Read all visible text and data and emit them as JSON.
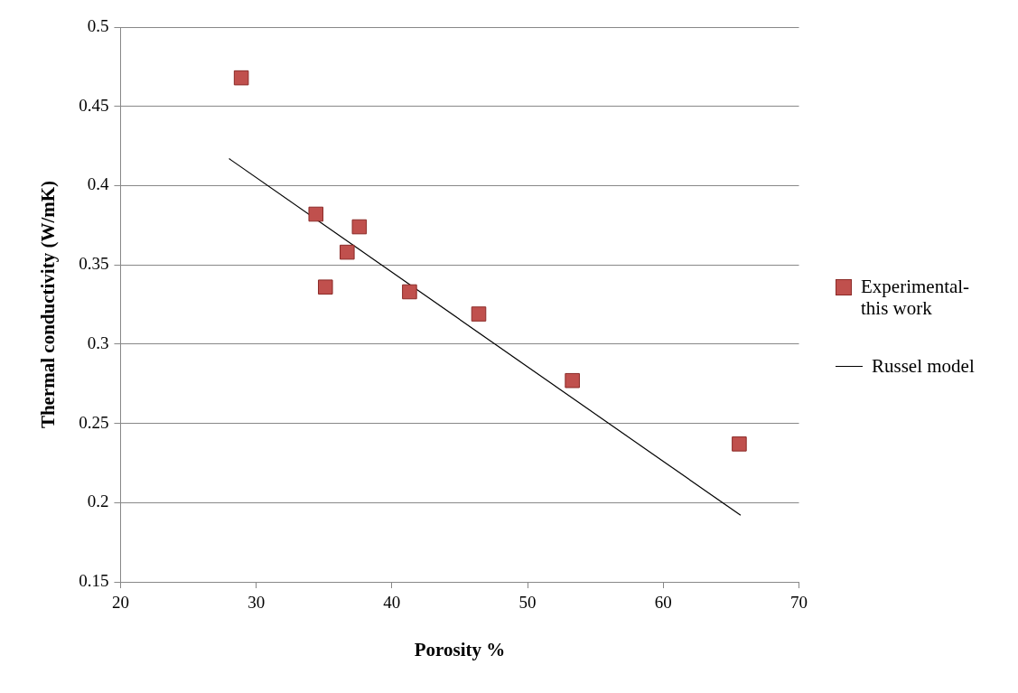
{
  "chart_data": {
    "type": "scatter",
    "xlabel": "Porosity %",
    "ylabel": "Thermal conductivity (W/mK)",
    "xlim": [
      20,
      70
    ],
    "xticks": [
      20,
      30,
      40,
      50,
      60,
      70
    ],
    "ylim": [
      0.15,
      0.5
    ],
    "yticks": [
      0.15,
      0.2,
      0.25,
      0.3,
      0.35,
      0.4,
      0.45,
      0.5
    ],
    "grid": "y",
    "legend": "right",
    "marker": "square",
    "series": [
      {
        "name": "Experimental-this work",
        "color": "#c0504d",
        "x": [
          28.9,
          34.4,
          37.6,
          36.7,
          35.1,
          41.3,
          46.4,
          53.3,
          65.6
        ],
        "values": [
          0.468,
          0.382,
          0.374,
          0.358,
          0.336,
          0.333,
          0.319,
          0.277,
          0.237
        ]
      },
      {
        "name": "Russel model",
        "type": "line",
        "color": "#000000",
        "marker": "none",
        "x": [
          28.0,
          65.7
        ],
        "values": [
          0.417,
          0.192
        ]
      }
    ]
  }
}
